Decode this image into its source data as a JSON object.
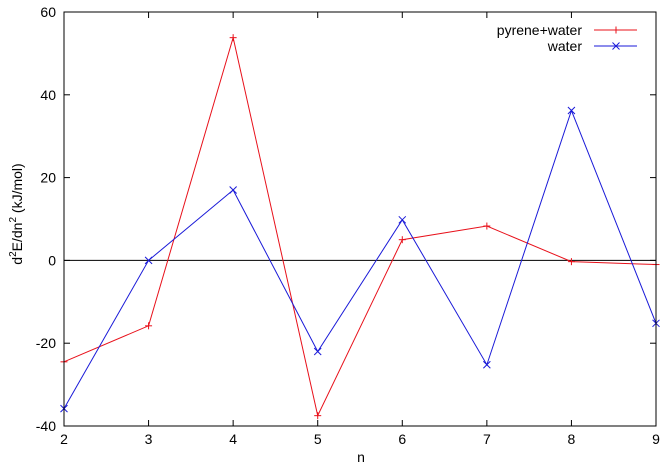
{
  "chart_data": {
    "type": "line",
    "xlabel": "n",
    "ylabel_main": "d",
    "ylabel_sup1": "2",
    "ylabel_mid": "E/dn",
    "ylabel_sup2": "2",
    "ylabel_tail": " (kJ/mol)",
    "xlim": [
      2,
      9
    ],
    "ylim": [
      -40,
      60
    ],
    "x_ticks": [
      "2",
      "3",
      "4",
      "5",
      "6",
      "7",
      "8",
      "9"
    ],
    "y_ticks": [
      "-40",
      "-20",
      "0",
      "20",
      "40",
      "60"
    ],
    "zero_line": true,
    "grid": false,
    "legend_position": "top-right",
    "x": [
      2,
      3,
      4,
      5,
      6,
      7,
      8,
      9
    ],
    "series": [
      {
        "name": "pyrene+water",
        "color": "#e8101a",
        "marker": "plus",
        "values": [
          -24.5,
          -15.8,
          53.8,
          -37.5,
          5.0,
          8.3,
          -0.3,
          -1.0
        ]
      },
      {
        "name": "water",
        "color": "#1a1ad8",
        "marker": "cross",
        "values": [
          -35.8,
          0.0,
          17.0,
          -22.0,
          9.8,
          -25.2,
          36.2,
          -15.2
        ]
      }
    ]
  }
}
